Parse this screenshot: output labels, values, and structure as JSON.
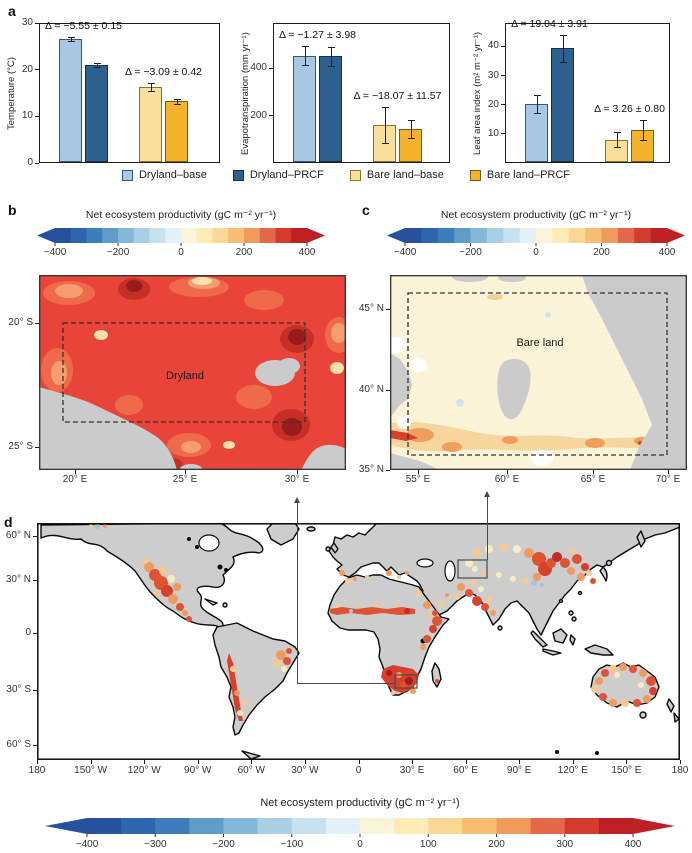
{
  "panels": {
    "a": "a",
    "b": "b",
    "c": "c",
    "d": "d"
  },
  "legend": {
    "items": [
      {
        "label": "Dryland–base",
        "color": "#a9c7e3",
        "edge": "#35597c"
      },
      {
        "label": "Dryland–PRCF",
        "color": "#2e608f",
        "edge": "#14314b"
      },
      {
        "label": "Bare land–base",
        "color": "#fadf9b",
        "edge": "#8f7122"
      },
      {
        "label": "Bare land–PRCF",
        "color": "#f4b32a",
        "edge": "#7c5c10"
      }
    ]
  },
  "chart_data": [
    {
      "type": "bar",
      "panel": "a",
      "ylabel": "Temperature (°C)",
      "categories": [
        "Dryland–base",
        "Dryland–PRCF",
        "Bare land–base",
        "Bare land–PRCF"
      ],
      "values": [
        26.6,
        21.0,
        16.3,
        13.2
      ],
      "errors": [
        0.4,
        0.4,
        0.9,
        0.6
      ],
      "yticks": [
        0,
        10,
        20,
        30
      ],
      "ylim": [
        0,
        30
      ],
      "annotations": [
        "Δ = −5.55 ± 0.15",
        "Δ = −3.09 ± 0.42"
      ]
    },
    {
      "type": "bar",
      "panel": "a",
      "ylabel": "Evapotranspiration (mm yr⁻¹)",
      "categories": [
        "Dryland–base",
        "Dryland–PRCF",
        "Bare land–base",
        "Bare land–PRCF"
      ],
      "values": [
        451,
        450,
        160,
        142
      ],
      "errors": [
        40,
        40,
        75,
        38
      ],
      "yticks": [
        200,
        400
      ],
      "ylim": [
        0,
        590
      ],
      "annotations": [
        "Δ = −1.27 ± 3.98",
        "Δ = −18.07 ± 11.57"
      ]
    },
    {
      "type": "bar",
      "panel": "a",
      "ylabel": "Leaf area index (m² m⁻² yr⁻¹)",
      "categories": [
        "Dryland–base",
        "Dryland–PRCF",
        "Bare land–base",
        "Bare land–PRCF"
      ],
      "values": [
        20.3,
        39.3,
        8.0,
        11.3
      ],
      "errors": [
        3.0,
        4.5,
        2.6,
        3.5
      ],
      "yticks": [
        10,
        20,
        30,
        40
      ],
      "ylim": [
        0,
        48
      ],
      "annotations": [
        "Δ = 19.04 ± 3.91",
        "Δ = 3.26 ± 0.80"
      ]
    },
    {
      "type": "heatmap",
      "panel": "b",
      "title": "Net ecosystem productivity (gC m⁻² yr⁻¹)",
      "region_label": "Dryland",
      "xticks": [
        "20° E",
        "25° E",
        "30° E"
      ],
      "yticks": [
        "20° S",
        "25° S"
      ],
      "colorbar_ticks": [
        "−400",
        "−200",
        "0",
        "200",
        "400"
      ],
      "value_summary": "predominantly 200–400 (red, strong carbon sink) with scattered >400 dark-red cells, small near-neutral cream patches; grey = no data / ocean"
    },
    {
      "type": "heatmap",
      "panel": "c",
      "title": "Net ecosystem productivity (gC m⁻² yr⁻¹)",
      "region_label": "Bare land",
      "xticks": [
        "55° E",
        "60° E",
        "65° E",
        "70° E"
      ],
      "yticks": [
        "45° N",
        "40° N",
        "35° N"
      ],
      "colorbar_ticks": [
        "−400",
        "−200",
        "0",
        "200",
        "400"
      ],
      "value_summary": "predominantly 0–50 (near-neutral cream); 50–200 orange band along the south; small red patches at the south-west edge; grey = water / no data"
    },
    {
      "type": "heatmap",
      "panel": "d",
      "title": "Net ecosystem productivity (gC m⁻² yr⁻¹)",
      "xticks": [
        "180",
        "150° W",
        "120° W",
        "90° W",
        "60° W",
        "30° W",
        "0",
        "30° E",
        "60° E",
        "90° E",
        "120° E",
        "150° E",
        "180"
      ],
      "yticks": [
        "60° N",
        "30° N",
        "0",
        "30° S",
        "60° S"
      ],
      "colorbar_ticks": [
        "−400",
        "−300",
        "−200",
        "−100",
        "0",
        "100",
        "200",
        "300",
        "400"
      ],
      "value_summary": "global dryland belts show positive NEP (orange–red): western North America/Mexico, Andes, eastern Brazil, Sahel, Horn of Africa, southern Africa, Middle East, central Asia, northern China, India margins and Australian rim; other land grey (masked)"
    }
  ],
  "colorbar": {
    "title": "Net ecosystem productivity (gC m⁻² yr⁻¹)",
    "colors": [
      "#27519f",
      "#2d65ae",
      "#3e7dbc",
      "#5f9cc9",
      "#85b8d8",
      "#a8cfe4",
      "#c8e1ef",
      "#e4f0f8",
      "#faf4da",
      "#fdeab7",
      "#fbd795",
      "#f8bc72",
      "#f09a5c",
      "#e4674a",
      "#d43b2d",
      "#bf2026"
    ]
  },
  "maps": {
    "b": {
      "label": "Dryland"
    },
    "c": {
      "label": "Bare land"
    }
  }
}
